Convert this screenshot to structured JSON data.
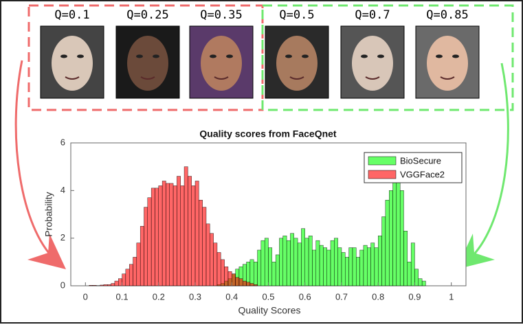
{
  "faces": [
    {
      "label": "Q=0.1"
    },
    {
      "label": "Q=0.25"
    },
    {
      "label": "Q=0.35"
    },
    {
      "label": "Q=0.5"
    },
    {
      "label": "Q=0.7"
    },
    {
      "label": "Q=0.85"
    }
  ],
  "chart_data": {
    "type": "histogram",
    "title": "Quality scores from FaceQnet",
    "x_label": "Quality Scores",
    "y_label": "Probability",
    "xlim": [
      -0.04,
      1.04
    ],
    "ylim": [
      0,
      6
    ],
    "xticks": [
      0,
      0.1,
      0.2,
      0.3,
      0.4,
      0.5,
      0.6,
      0.7,
      0.8,
      0.9,
      1
    ],
    "yticks": [
      0,
      2,
      4,
      6
    ],
    "legend": "upper right",
    "series": [
      {
        "name": "BioSecure",
        "color": "#00ff00",
        "bins": [
          0.36,
          0.37,
          0.38,
          0.39,
          0.4,
          0.41,
          0.42,
          0.43,
          0.44,
          0.45,
          0.46,
          0.47,
          0.48,
          0.49,
          0.5,
          0.51,
          0.52,
          0.53,
          0.54,
          0.55,
          0.56,
          0.57,
          0.58,
          0.59,
          0.6,
          0.61,
          0.62,
          0.63,
          0.64,
          0.65,
          0.66,
          0.67,
          0.68,
          0.69,
          0.7,
          0.71,
          0.72,
          0.73,
          0.74,
          0.75,
          0.76,
          0.77,
          0.78,
          0.79,
          0.8,
          0.81,
          0.82,
          0.83,
          0.84,
          0.85,
          0.86,
          0.87,
          0.88,
          0.89,
          0.9,
          0.91,
          0.92,
          0.93
        ],
        "values": [
          0.05,
          0.1,
          0.2,
          0.3,
          0.5,
          0.7,
          0.8,
          0.9,
          1.0,
          1.1,
          1.0,
          1.5,
          1.9,
          2.0,
          1.6,
          1.0,
          1.3,
          2.0,
          2.1,
          1.9,
          2.2,
          2.0,
          1.8,
          2.4,
          2.0,
          2.1,
          1.5,
          1.9,
          1.7,
          1.6,
          1.5,
          1.9,
          2.0,
          1.6,
          1.4,
          1.2,
          1.6,
          1.6,
          1.2,
          1.5,
          1.7,
          1.6,
          1.8,
          1.6,
          2.1,
          2.9,
          3.6,
          4.0,
          5.4,
          5.2,
          4.0,
          2.3,
          1.0,
          1.8,
          0.7,
          0.3,
          0.2
        ]
      },
      {
        "name": "VGGFace2",
        "color": "#ff0000",
        "bins": [
          0.01,
          0.02,
          0.03,
          0.04,
          0.05,
          0.06,
          0.07,
          0.08,
          0.09,
          0.1,
          0.11,
          0.12,
          0.13,
          0.14,
          0.15,
          0.16,
          0.17,
          0.18,
          0.19,
          0.2,
          0.21,
          0.22,
          0.23,
          0.24,
          0.25,
          0.26,
          0.27,
          0.28,
          0.29,
          0.3,
          0.31,
          0.32,
          0.33,
          0.34,
          0.35,
          0.36,
          0.37,
          0.38,
          0.39,
          0.4,
          0.41,
          0.42,
          0.43,
          0.44,
          0.45,
          0.46,
          0.47
        ],
        "values": [
          0.02,
          0.02,
          0.01,
          0.03,
          0.05,
          0.05,
          0.1,
          0.2,
          0.3,
          0.5,
          0.7,
          0.9,
          1.2,
          1.8,
          2.5,
          3.3,
          3.7,
          4.1,
          4.1,
          4.2,
          4.4,
          4.3,
          4.3,
          4.2,
          4.6,
          4.2,
          5.0,
          4.6,
          4.2,
          4.4,
          3.6,
          3.3,
          2.6,
          2.2,
          1.8,
          1.4,
          1.1,
          0.8,
          0.6,
          0.5,
          0.35,
          0.3,
          0.2,
          0.15,
          0.1,
          0.05
        ]
      }
    ]
  }
}
